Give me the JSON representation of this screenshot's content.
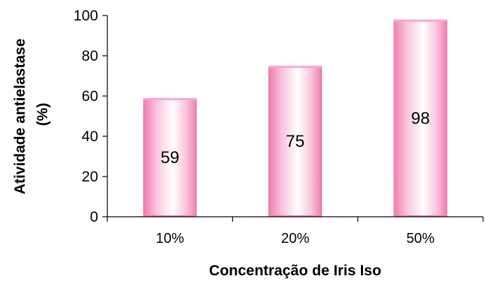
{
  "chart_data": {
    "type": "bar",
    "title": "",
    "categories": [
      "10%",
      "20%",
      "50%"
    ],
    "values": [
      59,
      75,
      98
    ],
    "data_labels": [
      "59",
      "75",
      "98"
    ],
    "xlabel": "Concentração de Iris Iso",
    "ylabel_lines": [
      "Atividade antielastase",
      "(%)"
    ],
    "ylim": [
      0,
      100
    ],
    "yticks": [
      "0",
      "20",
      "40",
      "60",
      "80",
      "100"
    ],
    "grid": false,
    "legend": "none",
    "colors": {
      "bar_edge": "#f07aae",
      "bar_center": "#ffffff",
      "bar_top": "#f6a9cb",
      "axis": "#000000"
    }
  }
}
